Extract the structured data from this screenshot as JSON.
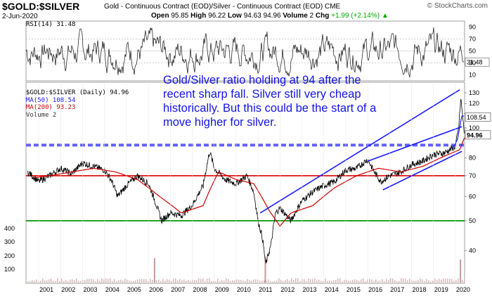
{
  "header": {
    "symbol": "$GOLD:$SILVER",
    "subtitle": "Gold - Continuous Contract (EOD)/Silver - Continuous Contract (EOD) CME",
    "date": "2-Jun-2020",
    "open_label": "Open",
    "open": "95.85",
    "high_label": "High",
    "high": "96.22",
    "low_label": "Low",
    "low": "94.63",
    "close": "94.96",
    "volume_label": "Volume",
    "volume": "2",
    "chg_label": "Chg",
    "chg": "+1.99 (+2.14%)",
    "chg_arrow": "▲",
    "watermark": "© StockCharts.com"
  },
  "annotation": "Gold/Silver ratio holding at 94 after the recent sharp fall. Silver still very cheap historically. But this could be the start of a move higher for silver.",
  "legend": {
    "main": "$GOLD:$SILVER (Daily) 94.96",
    "ma50": "MA(50) 108.54",
    "ma200": "MA(200) 93.23",
    "volume": "Volume 2"
  },
  "rsi": {
    "label": "RSI(14) 31.48",
    "value_tag": "31.48"
  },
  "price_tags": {
    "ma50": "108.54",
    "close": "94.96"
  },
  "colors": {
    "trend": "#1a1aff",
    "ma200": "#cc0000",
    "ma50": "#1a1aff",
    "support_red": "#dd0000",
    "support_green": "#009900",
    "level_dash": "#6060ff",
    "price": "#000000"
  },
  "chart_data": {
    "type": "line",
    "title": "$GOLD:$SILVER",
    "xlabel": "",
    "ylabel": "",
    "x_ticks": [
      "2001",
      "2002",
      "2003",
      "2004",
      "2005",
      "2006",
      "2007",
      "2008",
      "2009",
      "2010",
      "2011",
      "2012",
      "2013",
      "2014",
      "2015",
      "2016",
      "2017",
      "2018",
      "2019",
      "2020"
    ],
    "y_ticks_right": [
      "130",
      "120",
      "110",
      "100",
      "90",
      "80",
      "70",
      "60",
      "50",
      "40"
    ],
    "y_ticks_left": [
      "400",
      "300",
      "200",
      "100"
    ],
    "rsi_ticks": [
      "90",
      "70",
      "50",
      "30",
      "10"
    ],
    "ylim": [
      30,
      135
    ],
    "y_scale": "log",
    "series": [
      {
        "name": "$GOLD:$SILVER",
        "x": [
          2000.5,
          2001.0,
          2001.5,
          2002.0,
          2002.5,
          2003.0,
          2003.5,
          2004.0,
          2004.3,
          2004.6,
          2005.0,
          2005.5,
          2006.0,
          2006.3,
          2006.6,
          2007.0,
          2007.5,
          2008.0,
          2008.5,
          2008.8,
          2009.0,
          2009.5,
          2010.0,
          2010.5,
          2010.8,
          2011.0,
          2011.2,
          2011.35,
          2011.6,
          2011.8,
          2012.0,
          2012.5,
          2013.0,
          2013.5,
          2014.0,
          2014.5,
          2015.0,
          2015.5,
          2016.0,
          2016.3,
          2016.6,
          2017.0,
          2017.5,
          2018.0,
          2018.5,
          2019.0,
          2019.5,
          2020.0,
          2020.15,
          2020.25,
          2020.35,
          2020.42
        ],
        "values": [
          72,
          67,
          70,
          74,
          71,
          77,
          75,
          73,
          68,
          60,
          65,
          70,
          66,
          58,
          50,
          53,
          52,
          56,
          65,
          84,
          74,
          68,
          66,
          70,
          62,
          50,
          44,
          36,
          42,
          53,
          55,
          50,
          58,
          62,
          65,
          67,
          73,
          74,
          79,
          72,
          67,
          70,
          72,
          76,
          78,
          82,
          83,
          87,
          100,
          124,
          105,
          94.96
        ]
      },
      {
        "name": "MA(200)",
        "x": [
          2000.8,
          2001.5,
          2002.5,
          2003.5,
          2004.5,
          2005.5,
          2006.5,
          2007.5,
          2008.5,
          2009.2,
          2010.0,
          2010.8,
          2011.5,
          2012.0,
          2012.5,
          2013.5,
          2014.5,
          2015.5,
          2016.5,
          2017.5,
          2018.5,
          2019.5,
          2020.2,
          2020.42
        ],
        "values": [
          69,
          70,
          72,
          74,
          72,
          68,
          60,
          53,
          56,
          72,
          68,
          66,
          54,
          48,
          53,
          56,
          64,
          70,
          74,
          72,
          75,
          81,
          85,
          93.23
        ]
      },
      {
        "name": "MA(50)",
        "x": [
          2019.9,
          2020.1,
          2020.3,
          2020.42
        ],
        "values": [
          86,
          92,
          110,
          108.54
        ]
      }
    ],
    "rsi_series": {
      "name": "RSI(14)",
      "last": 31.48,
      "ylim": [
        0,
        100
      ]
    },
    "horizontal_lines": [
      {
        "name": "dashed-level",
        "value": 88
      },
      {
        "name": "red-support",
        "value": 70
      },
      {
        "name": "green-support",
        "value": 50
      }
    ],
    "trendlines": [
      {
        "name": "upper-trend",
        "from": [
          2011.1,
          53
        ],
        "to": [
          2020.2,
          133
        ]
      },
      {
        "name": "middle-trend",
        "from": [
          2016.0,
          78
        ],
        "to": [
          2020.3,
          101
        ]
      },
      {
        "name": "lower-trend",
        "from": [
          2016.7,
          63
        ],
        "to": [
          2020.3,
          84
        ]
      }
    ],
    "volume_spikes": [
      {
        "x": 2006.25,
        "value": 170
      },
      {
        "x": 2011.3,
        "value": 180
      },
      {
        "x": 2020.2,
        "value": 160
      }
    ]
  }
}
